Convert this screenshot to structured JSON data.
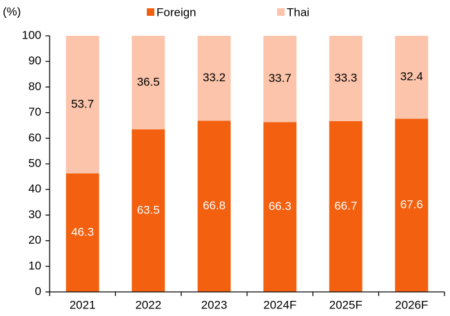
{
  "chart_data": {
    "type": "stacked_bar",
    "y_label": "(%)",
    "categories": [
      "2021",
      "2022",
      "2023",
      "2024F",
      "2025F",
      "2026F"
    ],
    "series": [
      {
        "name": "Foreign",
        "color": "#f26010",
        "values": [
          46.3,
          63.5,
          66.8,
          66.3,
          66.7,
          67.6
        ]
      },
      {
        "name": "Thai",
        "color": "#fcc4aa",
        "values": [
          53.7,
          36.5,
          33.2,
          33.7,
          33.3,
          32.4
        ]
      }
    ],
    "ylim": [
      0,
      100
    ],
    "yticks": [
      0,
      10,
      20,
      30,
      40,
      50,
      60,
      70,
      80,
      90,
      100
    ]
  }
}
